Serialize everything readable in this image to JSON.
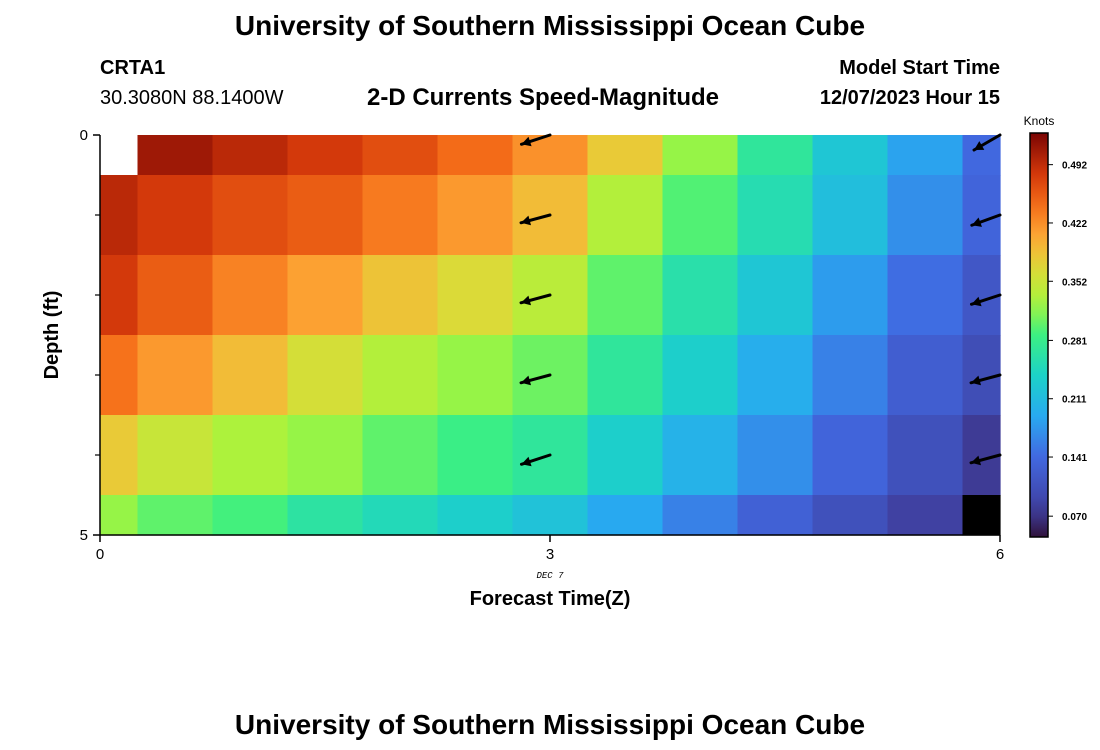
{
  "title": "University of Southern Mississippi Ocean Cube",
  "station": {
    "name": "CRTA1",
    "coords": "30.3080N  88.1400W"
  },
  "subtitle": "2-D Currents Speed-Magnitude",
  "model": {
    "label": "Model Start Time",
    "value": "12/07/2023 Hour 15"
  },
  "footer_title": "University of Southern Mississippi Ocean Cube",
  "colors": {
    "missing_top_left": "#ffffff",
    "missing_bottom_right": "#000000"
  },
  "chart_data": {
    "type": "heatmap",
    "xlabel": "Forecast Time(Z)",
    "ylabel": "Depth (ft)",
    "x_ticks": [
      "0",
      "3",
      "6"
    ],
    "x_sublabel": "DEC 7",
    "y_ticks": [
      "0",
      "5"
    ],
    "xlim": [
      0,
      6
    ],
    "ylim": [
      0,
      5
    ],
    "legend_title": "Knots",
    "legend_ticks": [
      "0.492",
      "0.422",
      "0.352",
      "0.281",
      "0.211",
      "0.141",
      "0.070"
    ],
    "legend_range": [
      0.045,
      0.53
    ],
    "depths": [
      0,
      1,
      2,
      3,
      4,
      5
    ],
    "times": [
      0,
      0.5,
      1,
      1.5,
      2,
      2.5,
      3,
      3.5,
      4,
      4.5,
      5,
      5.5,
      6
    ],
    "values": [
      [
        null,
        0.51,
        0.495,
        0.48,
        0.465,
        0.445,
        0.42,
        0.38,
        0.32,
        0.27,
        0.225,
        0.185,
        0.14
      ],
      [
        0.495,
        0.48,
        0.465,
        0.455,
        0.435,
        0.415,
        0.39,
        0.335,
        0.295,
        0.255,
        0.215,
        0.17,
        0.135
      ],
      [
        0.48,
        0.455,
        0.43,
        0.41,
        0.385,
        0.365,
        0.34,
        0.3,
        0.26,
        0.225,
        0.18,
        0.145,
        0.115
      ],
      [
        0.44,
        0.415,
        0.39,
        0.36,
        0.335,
        0.32,
        0.305,
        0.27,
        0.235,
        0.195,
        0.16,
        0.125,
        0.1
      ],
      [
        0.38,
        0.35,
        0.33,
        0.32,
        0.3,
        0.285,
        0.27,
        0.235,
        0.2,
        0.17,
        0.135,
        0.105,
        0.075
      ],
      [
        0.32,
        0.3,
        0.29,
        0.265,
        0.25,
        0.235,
        0.22,
        0.19,
        0.16,
        0.13,
        0.105,
        0.08,
        null
      ]
    ],
    "vectors": [
      {
        "time": 3,
        "depth": 0,
        "dir_deg": 252,
        "speed": 0.42
      },
      {
        "time": 3,
        "depth": 1,
        "dir_deg": 255,
        "speed": 0.39
      },
      {
        "time": 3,
        "depth": 2,
        "dir_deg": 255,
        "speed": 0.34
      },
      {
        "time": 3,
        "depth": 3,
        "dir_deg": 255,
        "speed": 0.305
      },
      {
        "time": 3,
        "depth": 4,
        "dir_deg": 252,
        "speed": 0.27
      },
      {
        "time": 6,
        "depth": 0,
        "dir_deg": 240,
        "speed": 0.14
      },
      {
        "time": 6,
        "depth": 1,
        "dir_deg": 250,
        "speed": 0.135
      },
      {
        "time": 6,
        "depth": 2,
        "dir_deg": 252,
        "speed": 0.115
      },
      {
        "time": 6,
        "depth": 3,
        "dir_deg": 255,
        "speed": 0.1
      },
      {
        "time": 6,
        "depth": 4,
        "dir_deg": 255,
        "speed": 0.075
      }
    ]
  }
}
